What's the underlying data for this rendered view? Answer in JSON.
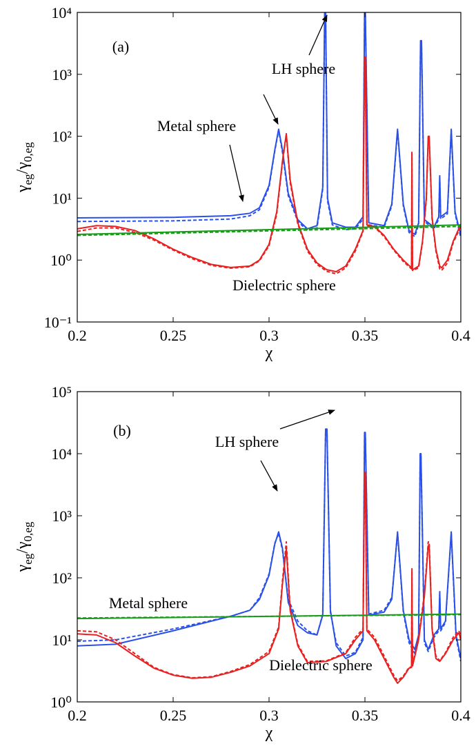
{
  "chart_data": [
    {
      "type": "line",
      "yscale": "log",
      "ylabel": [
        "γ",
        "eg",
        "/γ",
        "0,eg"
      ],
      "xlabel": "χ",
      "annotations": [
        "(a)",
        "LH sphere",
        "Metal sphere",
        "Dielectric sphere"
      ],
      "xlim": [
        0.2,
        0.4
      ],
      "xticks": [
        0.2,
        0.25,
        0.3,
        0.35,
        0.4
      ],
      "ylim": [
        0.1,
        10000
      ],
      "yticks": [
        {
          "value": 0.1,
          "label": "10⁻¹"
        },
        {
          "value": 1,
          "label": "10⁰"
        },
        {
          "value": 10,
          "label": "10¹"
        },
        {
          "value": 100,
          "label": "10²"
        },
        {
          "value": 1000,
          "label": "10³"
        },
        {
          "value": 10000,
          "label": "10⁴"
        }
      ],
      "series": [
        {
          "color": "#2a50e8",
          "dashed": true,
          "x": [
            0.2,
            0.25,
            0.28,
            0.29,
            0.295,
            0.3,
            0.303,
            0.305,
            0.307,
            0.31,
            0.315,
            0.32,
            0.325,
            0.328,
            0.329,
            0.3295,
            0.3305,
            0.333,
            0.34,
            0.345,
            0.349,
            0.3498,
            0.3502,
            0.352,
            0.36,
            0.364,
            0.367,
            0.37,
            0.373,
            0.376,
            0.378,
            0.379,
            0.3795,
            0.381,
            0.386,
            0.3885,
            0.389,
            0.3895,
            0.393,
            0.395,
            0.397,
            0.4
          ],
          "values": [
            4.2,
            4.3,
            4.6,
            5.2,
            6.5,
            15,
            58,
            125,
            55,
            11,
            4.2,
            3.0,
            3.3,
            14,
            9000,
            9000,
            9,
            3.7,
            3.1,
            3.2,
            4.6,
            9000,
            9000,
            3.7,
            3.4,
            7.5,
            125,
            7.5,
            2.8,
            2.4,
            3.7,
            3300,
            3300,
            4.2,
            3.2,
            4.6,
            21,
            4.6,
            5.6,
            125,
            5.6,
            2.3
          ]
        },
        {
          "color": "#2a50e8",
          "dashed": false,
          "x": [
            0.2,
            0.25,
            0.28,
            0.29,
            0.295,
            0.3,
            0.303,
            0.305,
            0.307,
            0.31,
            0.315,
            0.32,
            0.325,
            0.328,
            0.329,
            0.3295,
            0.3305,
            0.333,
            0.34,
            0.345,
            0.349,
            0.3498,
            0.3502,
            0.352,
            0.36,
            0.364,
            0.367,
            0.37,
            0.373,
            0.376,
            0.378,
            0.379,
            0.3795,
            0.381,
            0.386,
            0.3885,
            0.389,
            0.3895,
            0.393,
            0.395,
            0.397,
            0.4
          ],
          "values": [
            4.8,
            4.9,
            5.2,
            5.7,
            7,
            16,
            60,
            130,
            60,
            12,
            4.5,
            3.2,
            3.6,
            15,
            10000,
            10000,
            10,
            4,
            3.4,
            3.4,
            5,
            10000,
            10000,
            4,
            3.6,
            8,
            130,
            8,
            3,
            2.6,
            4,
            3500,
            3500,
            4.5,
            3.4,
            5,
            23,
            5,
            6,
            130,
            6,
            2.5
          ]
        },
        {
          "color": "#e8201f",
          "dashed": true,
          "x": [
            0.2,
            0.21,
            0.22,
            0.23,
            0.24,
            0.25,
            0.26,
            0.27,
            0.28,
            0.29,
            0.295,
            0.3,
            0.304,
            0.307,
            0.309,
            0.311,
            0.315,
            0.32,
            0.325,
            0.33,
            0.335,
            0.34,
            0.345,
            0.349,
            0.3498,
            0.3502,
            0.351,
            0.355,
            0.36,
            0.365,
            0.37,
            0.3743,
            0.3745,
            0.3748,
            0.375,
            0.378,
            0.38,
            0.382,
            0.383,
            0.3835,
            0.385,
            0.387,
            0.389,
            0.39,
            0.393,
            0.396,
            0.4
          ],
          "values": [
            2.9,
            3.3,
            3.3,
            2.8,
            2.1,
            1.45,
            1.05,
            0.82,
            0.74,
            0.78,
            0.97,
            1.7,
            5.5,
            38,
            105,
            18,
            3.8,
            1.4,
            0.85,
            0.66,
            0.6,
            0.75,
            1.4,
            2.9,
            1800,
            1800,
            3.6,
            3.4,
            2.4,
            1.45,
            0.95,
            0.72,
            52,
            0.68,
            0.68,
            0.75,
            1.9,
            9.5,
            95,
            95,
            4.6,
            1.4,
            0.72,
            0.68,
            0.9,
            1.9,
            3.5
          ]
        },
        {
          "color": "#e8201f",
          "dashed": false,
          "x": [
            0.2,
            0.21,
            0.22,
            0.23,
            0.24,
            0.25,
            0.26,
            0.27,
            0.28,
            0.29,
            0.295,
            0.3,
            0.304,
            0.307,
            0.309,
            0.311,
            0.315,
            0.32,
            0.325,
            0.33,
            0.335,
            0.34,
            0.345,
            0.349,
            0.3498,
            0.3502,
            0.351,
            0.355,
            0.36,
            0.365,
            0.37,
            0.3743,
            0.3745,
            0.3748,
            0.375,
            0.378,
            0.38,
            0.382,
            0.383,
            0.3835,
            0.385,
            0.387,
            0.389,
            0.39,
            0.393,
            0.396,
            0.4
          ],
          "values": [
            3.2,
            3.6,
            3.5,
            3.0,
            2.2,
            1.5,
            1.1,
            0.85,
            0.76,
            0.8,
            1.0,
            1.8,
            6,
            40,
            110,
            20,
            4,
            1.5,
            0.9,
            0.7,
            0.65,
            0.8,
            1.5,
            3,
            1900,
            1900,
            3.7,
            3.5,
            2.5,
            1.5,
            1.0,
            0.75,
            55,
            0.7,
            0.7,
            0.8,
            2,
            10,
            100,
            100,
            5,
            1.5,
            0.8,
            0.75,
            1.0,
            2,
            3.8
          ]
        },
        {
          "color": "#1a9a1a",
          "dashed": true,
          "x": [
            0.2,
            0.4
          ],
          "values": [
            2.5,
            3.5
          ]
        },
        {
          "color": "#1a9a1a",
          "dashed": false,
          "x": [
            0.2,
            0.4
          ],
          "values": [
            2.6,
            3.7
          ]
        }
      ]
    },
    {
      "type": "line",
      "yscale": "log",
      "ylabel": [
        "γ",
        "eg",
        "/γ",
        "0,eg"
      ],
      "xlabel": "χ",
      "annotations": [
        "(b)",
        "LH sphere",
        "Metal sphere",
        "Dielectric sphere"
      ],
      "xlim": [
        0.2,
        0.4
      ],
      "xticks": [
        0.2,
        0.25,
        0.3,
        0.35,
        0.4
      ],
      "ylim": [
        1,
        100000
      ],
      "yticks": [
        {
          "value": 1,
          "label": "10⁰"
        },
        {
          "value": 10,
          "label": "10¹"
        },
        {
          "value": 100,
          "label": "10²"
        },
        {
          "value": 1000,
          "label": "10³"
        },
        {
          "value": 10000,
          "label": "10⁴"
        },
        {
          "value": 100000,
          "label": "10⁵"
        }
      ],
      "series": [
        {
          "color": "#2a50e8",
          "dashed": true,
          "x": [
            0.2,
            0.22,
            0.25,
            0.28,
            0.29,
            0.295,
            0.3,
            0.303,
            0.305,
            0.307,
            0.31,
            0.315,
            0.32,
            0.325,
            0.328,
            0.3295,
            0.3302,
            0.332,
            0.335,
            0.34,
            0.345,
            0.349,
            0.3498,
            0.3502,
            0.352,
            0.36,
            0.364,
            0.367,
            0.37,
            0.373,
            0.376,
            0.378,
            0.3788,
            0.3792,
            0.381,
            0.383,
            0.386,
            0.3885,
            0.389,
            0.3895,
            0.392,
            0.395,
            0.3975,
            0.4
          ],
          "values": [
            9.5,
            10,
            15,
            24,
            30,
            48,
            115,
            360,
            520,
            280,
            45,
            20,
            14,
            12,
            26,
            24000,
            24000,
            28,
            9,
            5.5,
            6.3,
            11,
            20000,
            20000,
            26,
            30,
            48,
            520,
            28,
            9,
            6,
            11,
            9500,
            9500,
            9,
            6.5,
            11,
            14,
            55,
            14,
            19,
            520,
            11,
            4.5
          ]
        },
        {
          "color": "#2a50e8",
          "dashed": false,
          "x": [
            0.2,
            0.22,
            0.25,
            0.28,
            0.29,
            0.295,
            0.3,
            0.303,
            0.305,
            0.307,
            0.31,
            0.315,
            0.32,
            0.325,
            0.328,
            0.3295,
            0.3302,
            0.332,
            0.335,
            0.34,
            0.345,
            0.349,
            0.3498,
            0.3502,
            0.352,
            0.36,
            0.364,
            0.367,
            0.37,
            0.373,
            0.376,
            0.378,
            0.3788,
            0.3792,
            0.381,
            0.383,
            0.386,
            0.3885,
            0.389,
            0.3895,
            0.392,
            0.395,
            0.3975,
            0.4
          ],
          "values": [
            8,
            8.5,
            14,
            24,
            30,
            45,
            110,
            350,
            550,
            300,
            40,
            17,
            13,
            12,
            25,
            25000,
            25000,
            30,
            8,
            5,
            6,
            10,
            22000,
            22000,
            25,
            28,
            45,
            550,
            30,
            10,
            7,
            12,
            10000,
            10000,
            10,
            7,
            12,
            15,
            60,
            15,
            20,
            550,
            12,
            5
          ]
        },
        {
          "color": "#e8201f",
          "dashed": true,
          "x": [
            0.2,
            0.21,
            0.22,
            0.23,
            0.24,
            0.25,
            0.26,
            0.27,
            0.28,
            0.29,
            0.3,
            0.305,
            0.307,
            0.309,
            0.311,
            0.315,
            0.32,
            0.33,
            0.34,
            0.345,
            0.349,
            0.3498,
            0.3502,
            0.351,
            0.355,
            0.36,
            0.365,
            0.367,
            0.37,
            0.373,
            0.3743,
            0.3745,
            0.3748,
            0.375,
            0.378,
            0.381,
            0.383,
            0.3835,
            0.385,
            0.387,
            0.389,
            0.392,
            0.396,
            0.399,
            0.4
          ],
          "values": [
            14,
            13.5,
            10,
            6,
            3.6,
            2.75,
            2.45,
            2.55,
            3.1,
            4,
            6.5,
            16,
            90,
            380,
            32,
            8.5,
            4.5,
            4.6,
            6.2,
            11,
            15,
            4800,
            4800,
            15,
            11,
            5.5,
            2.7,
            2.2,
            2.6,
            3.6,
            3.7,
            130,
            3.9,
            4.2,
            11,
            55,
            380,
            380,
            16,
            5.5,
            4.6,
            6.2,
            11,
            14,
            11
          ]
        },
        {
          "color": "#e8201f",
          "dashed": false,
          "x": [
            0.2,
            0.21,
            0.22,
            0.23,
            0.24,
            0.25,
            0.26,
            0.27,
            0.28,
            0.29,
            0.3,
            0.305,
            0.307,
            0.309,
            0.311,
            0.315,
            0.32,
            0.33,
            0.34,
            0.345,
            0.349,
            0.3498,
            0.3502,
            0.351,
            0.355,
            0.36,
            0.365,
            0.367,
            0.37,
            0.373,
            0.3743,
            0.3745,
            0.3748,
            0.375,
            0.378,
            0.381,
            0.383,
            0.3835,
            0.385,
            0.387,
            0.389,
            0.392,
            0.396,
            0.399,
            0.4
          ],
          "values": [
            12.5,
            12,
            9,
            5.5,
            3.5,
            2.7,
            2.4,
            2.5,
            3.0,
            3.8,
            6,
            15,
            80,
            300,
            30,
            8,
            4.3,
            4.5,
            6,
            10,
            14,
            5000,
            5000,
            14,
            10,
            5,
            2.5,
            2.0,
            2.5,
            3.5,
            3.6,
            140,
            3.8,
            4,
            10,
            50,
            330,
            330,
            15,
            5,
            4.5,
            6,
            10,
            13,
            10
          ]
        },
        {
          "color": "#1a9a1a",
          "dashed": true,
          "x": [
            0.2,
            0.4
          ],
          "values": [
            22.5,
            25.5
          ]
        },
        {
          "color": "#1a9a1a",
          "dashed": false,
          "x": [
            0.2,
            0.4
          ],
          "values": [
            22,
            26
          ]
        }
      ]
    }
  ]
}
